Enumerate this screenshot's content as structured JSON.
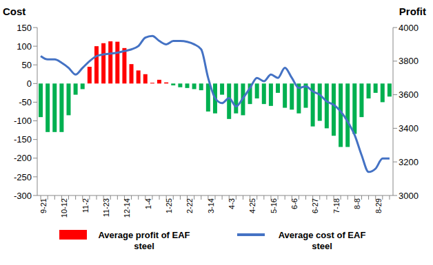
{
  "chart_data": {
    "type": "bar",
    "y_label": "Cost",
    "y2_label": "Profit",
    "categories": [
      "9-21",
      null,
      null,
      "10-12",
      null,
      null,
      "11-2",
      null,
      null,
      "11-23",
      null,
      null,
      "12-14",
      null,
      null,
      "1-4",
      null,
      null,
      "1-25",
      null,
      null,
      "2-22",
      null,
      null,
      "3-14",
      null,
      null,
      "4-3",
      null,
      null,
      "4-25",
      null,
      null,
      "5-16",
      null,
      null,
      "6-6",
      null,
      null,
      "6-27",
      null,
      null,
      "7-18",
      null,
      null,
      "8-8",
      null,
      null,
      "8-29",
      null,
      null
    ],
    "series": [
      {
        "name": "Average profit of EAF steel",
        "type": "bar",
        "color": "#ff0000",
        "colors": [
          "#00b050",
          "#00b050",
          "#00b050",
          "#00b050",
          "#00b050",
          "#00b050",
          "#00b050",
          "#ff0000",
          "#ff0000",
          "#ff0000",
          "#ff0000",
          "#ff0000",
          "#ff0000",
          "#ff0000",
          "#ff0000",
          "#ff0000",
          "#ff0000",
          "#ff0000",
          "#ff0000",
          "#00b050",
          "#00b050",
          "#00b050",
          "#00b050",
          "#00b050",
          "#00b050",
          "#00b050",
          "#00b050",
          "#00b050",
          "#00b050",
          "#00b050",
          "#00b050",
          "#00b050",
          "#00b050",
          "#00b050",
          "#00b050",
          "#00b050",
          "#00b050",
          "#00b050",
          "#00b050",
          "#00b050",
          "#00b050",
          "#00b050",
          "#00b050",
          "#00b050",
          "#00b050",
          "#00b050",
          "#00b050",
          "#00b050",
          "#00b050",
          "#00b050",
          "#00b050"
        ],
        "values": [
          -90,
          -130,
          -130,
          -130,
          -85,
          -30,
          -15,
          45,
          100,
          108,
          113,
          112,
          95,
          52,
          35,
          25,
          2,
          10,
          3,
          -5,
          -10,
          -12,
          -15,
          -18,
          -75,
          -80,
          -30,
          -95,
          -80,
          -85,
          -55,
          -40,
          -55,
          -60,
          -25,
          -65,
          -70,
          -80,
          -65,
          -115,
          -100,
          -120,
          -140,
          -170,
          -170,
          -135,
          -90,
          -40,
          -25,
          -50,
          -35
        ]
      },
      {
        "name": "Average cost of EAF steel",
        "type": "line",
        "axis": "y2",
        "color": "#4472c4",
        "values": [
          3830,
          3810,
          3810,
          3790,
          3760,
          3720,
          3760,
          3800,
          3830,
          3840,
          3845,
          3850,
          3860,
          3870,
          3890,
          3940,
          3950,
          3920,
          3900,
          3920,
          3920,
          3915,
          3900,
          3870,
          3700,
          3580,
          3550,
          3580,
          3530,
          3580,
          3640,
          3700,
          3680,
          3720,
          3700,
          3760,
          3700,
          3640,
          3650,
          3620,
          3600,
          3560,
          3540,
          3500,
          3440,
          3360,
          3240,
          3140,
          3160,
          3220,
          3220
        ]
      }
    ],
    "ylim": [
      -300,
      150
    ],
    "yticks": [
      -300,
      -250,
      -200,
      -150,
      -100,
      -50,
      0,
      50,
      100,
      150
    ],
    "y2lim": [
      3000,
      4000
    ],
    "y2ticks": [
      3000,
      3200,
      3400,
      3600,
      3800,
      4000
    ],
    "legend": "bottom",
    "grid": false
  }
}
